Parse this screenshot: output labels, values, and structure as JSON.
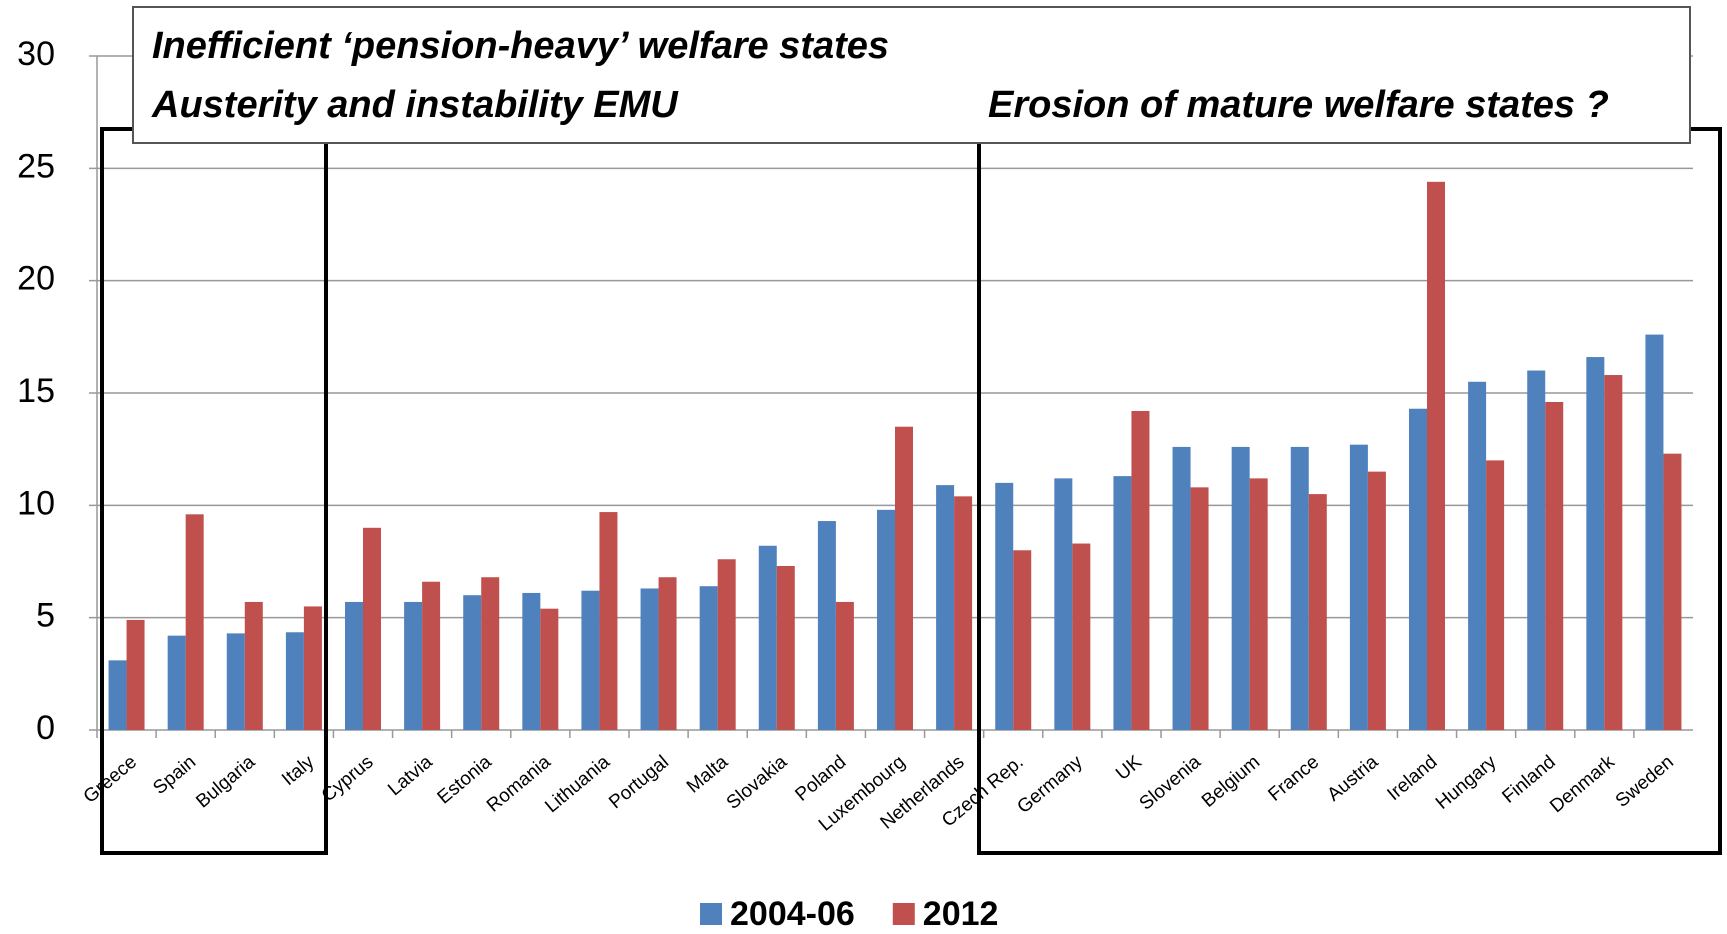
{
  "chart_data": {
    "type": "bar",
    "annotations": [
      "Inefficient ‘pension-heavy’ welfare states",
      "Austerity and instability EMU",
      "Erosion of mature welfare states ?"
    ],
    "categories": [
      "Greece",
      "Spain",
      "Bulgaria",
      "Italy",
      "Cyprus",
      "Latvia",
      "Estonia",
      "Romania",
      "Lithuania",
      "Portugal",
      "Malta",
      "Slovakia",
      "Poland",
      "Luxembourg",
      "Netherlands",
      "Czech Rep.",
      "Germany",
      "UK",
      "Slovenia",
      "Belgium",
      "France",
      "Austria",
      "Ireland",
      "Hungary",
      "Finland",
      "Denmark",
      "Sweden"
    ],
    "series": [
      {
        "name": "2004-06",
        "color": "#4f81bd",
        "values": [
          3.1,
          4.2,
          4.3,
          4.35,
          5.7,
          5.7,
          6.0,
          6.1,
          6.2,
          6.3,
          6.4,
          8.2,
          9.3,
          9.8,
          10.9,
          11.0,
          11.2,
          11.3,
          12.6,
          12.6,
          12.6,
          12.7,
          14.3,
          15.5,
          16.0,
          16.6,
          17.6
        ]
      },
      {
        "name": "2012",
        "color": "#c0504d",
        "values": [
          4.9,
          9.6,
          5.7,
          5.5,
          9.0,
          6.6,
          6.8,
          5.4,
          9.7,
          6.8,
          7.6,
          7.3,
          5.7,
          13.5,
          10.4,
          8.0,
          8.3,
          14.2,
          10.8,
          11.2,
          10.5,
          11.5,
          24.4,
          12.0,
          14.6,
          15.8,
          12.3
        ]
      }
    ],
    "ylim": [
      0,
      30
    ],
    "yticks": [
      0,
      5,
      10,
      15,
      20,
      25,
      30
    ],
    "grid": true,
    "legend": "bottom"
  }
}
